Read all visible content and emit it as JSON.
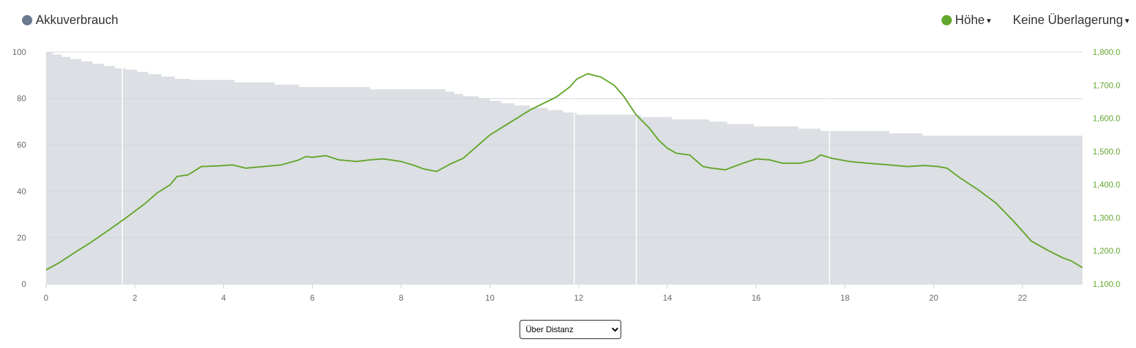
{
  "legend": {
    "battery_label": "Akkuverbrauch",
    "battery_color": "#6b7a8f",
    "elevation_label": "Höhe",
    "elevation_color": "#63a62c",
    "overlay_label": "Keine Überlagerung",
    "caret": "▾"
  },
  "select": {
    "value": "Über Distanz"
  },
  "chart_data": {
    "type": "area",
    "xlim": [
      0,
      23.35
    ],
    "ylim_left": [
      0,
      100
    ],
    "ylim_right": [
      1100,
      1800
    ],
    "x_ticks": [
      "0",
      "2",
      "4",
      "6",
      "8",
      "10",
      "12",
      "14",
      "16",
      "18",
      "20",
      "22"
    ],
    "y_left_ticks": [
      "0",
      "20",
      "40",
      "60",
      "80",
      "100"
    ],
    "y_right_ticks": [
      "1,100.0",
      "1,200.0",
      "1,300.0",
      "1,400.0",
      "1,500.0",
      "1,600.0",
      "1,700.0",
      "1,800.0"
    ],
    "grid": true,
    "series": [
      {
        "name": "Akkuverbrauch",
        "axis": "left",
        "color": "#dcdfe3",
        "x": [
          0,
          0.15,
          0.35,
          0.55,
          0.8,
          1.05,
          1.3,
          1.55,
          1.8,
          2.05,
          2.3,
          2.6,
          2.9,
          3.25,
          4.25,
          5.15,
          5.7,
          7.3,
          9.0,
          9.2,
          9.4,
          9.75,
          10.0,
          10.25,
          10.55,
          10.9,
          11.3,
          11.65,
          11.95,
          13.4,
          14.1,
          14.95,
          15.35,
          15.95,
          16.95,
          17.45,
          19.0,
          19.75,
          23.35
        ],
        "values": [
          100,
          99,
          98,
          97,
          96,
          95,
          94,
          93,
          92.5,
          91.5,
          90.5,
          89.5,
          88.5,
          88,
          87,
          86,
          85,
          84,
          83,
          82,
          81,
          80,
          79,
          78,
          77,
          76,
          75,
          74,
          73,
          72,
          71,
          70,
          69,
          68,
          67,
          66,
          65,
          64,
          63
        ]
      },
      {
        "name": "Höhe",
        "axis": "right",
        "color": "#63a62c",
        "x": [
          0,
          0.3,
          0.7,
          1.0,
          1.4,
          1.8,
          2.2,
          2.5,
          2.8,
          2.95,
          3.2,
          3.5,
          3.9,
          4.2,
          4.5,
          4.9,
          5.3,
          5.7,
          5.85,
          6.0,
          6.3,
          6.6,
          7.0,
          7.3,
          7.6,
          8.0,
          8.3,
          8.5,
          8.8,
          9.1,
          9.4,
          9.7,
          10.0,
          10.3,
          10.6,
          10.9,
          11.2,
          11.5,
          11.8,
          11.95,
          12.2,
          12.5,
          12.8,
          13.0,
          13.3,
          13.6,
          13.8,
          14.0,
          14.2,
          14.5,
          14.8,
          15.0,
          15.3,
          15.7,
          16.0,
          16.3,
          16.6,
          17.0,
          17.3,
          17.45,
          17.7,
          18.1,
          18.5,
          19.0,
          19.4,
          19.8,
          20.1,
          20.3,
          20.6,
          21.0,
          21.4,
          21.8,
          22.2,
          22.6,
          22.9,
          23.1,
          23.35
        ],
        "values": [
          1143,
          1165,
          1200,
          1225,
          1262,
          1300,
          1340,
          1375,
          1400,
          1425,
          1430,
          1455,
          1457,
          1460,
          1450,
          1455,
          1460,
          1475,
          1485,
          1483,
          1488,
          1475,
          1470,
          1475,
          1478,
          1470,
          1458,
          1448,
          1440,
          1462,
          1480,
          1515,
          1550,
          1575,
          1600,
          1625,
          1645,
          1665,
          1695,
          1718,
          1735,
          1725,
          1700,
          1670,
          1610,
          1570,
          1535,
          1510,
          1495,
          1490,
          1455,
          1450,
          1445,
          1465,
          1478,
          1475,
          1465,
          1465,
          1475,
          1490,
          1480,
          1470,
          1465,
          1460,
          1455,
          1458,
          1455,
          1450,
          1420,
          1385,
          1345,
          1290,
          1230,
          1200,
          1180,
          1170,
          1150
        ]
      }
    ]
  }
}
